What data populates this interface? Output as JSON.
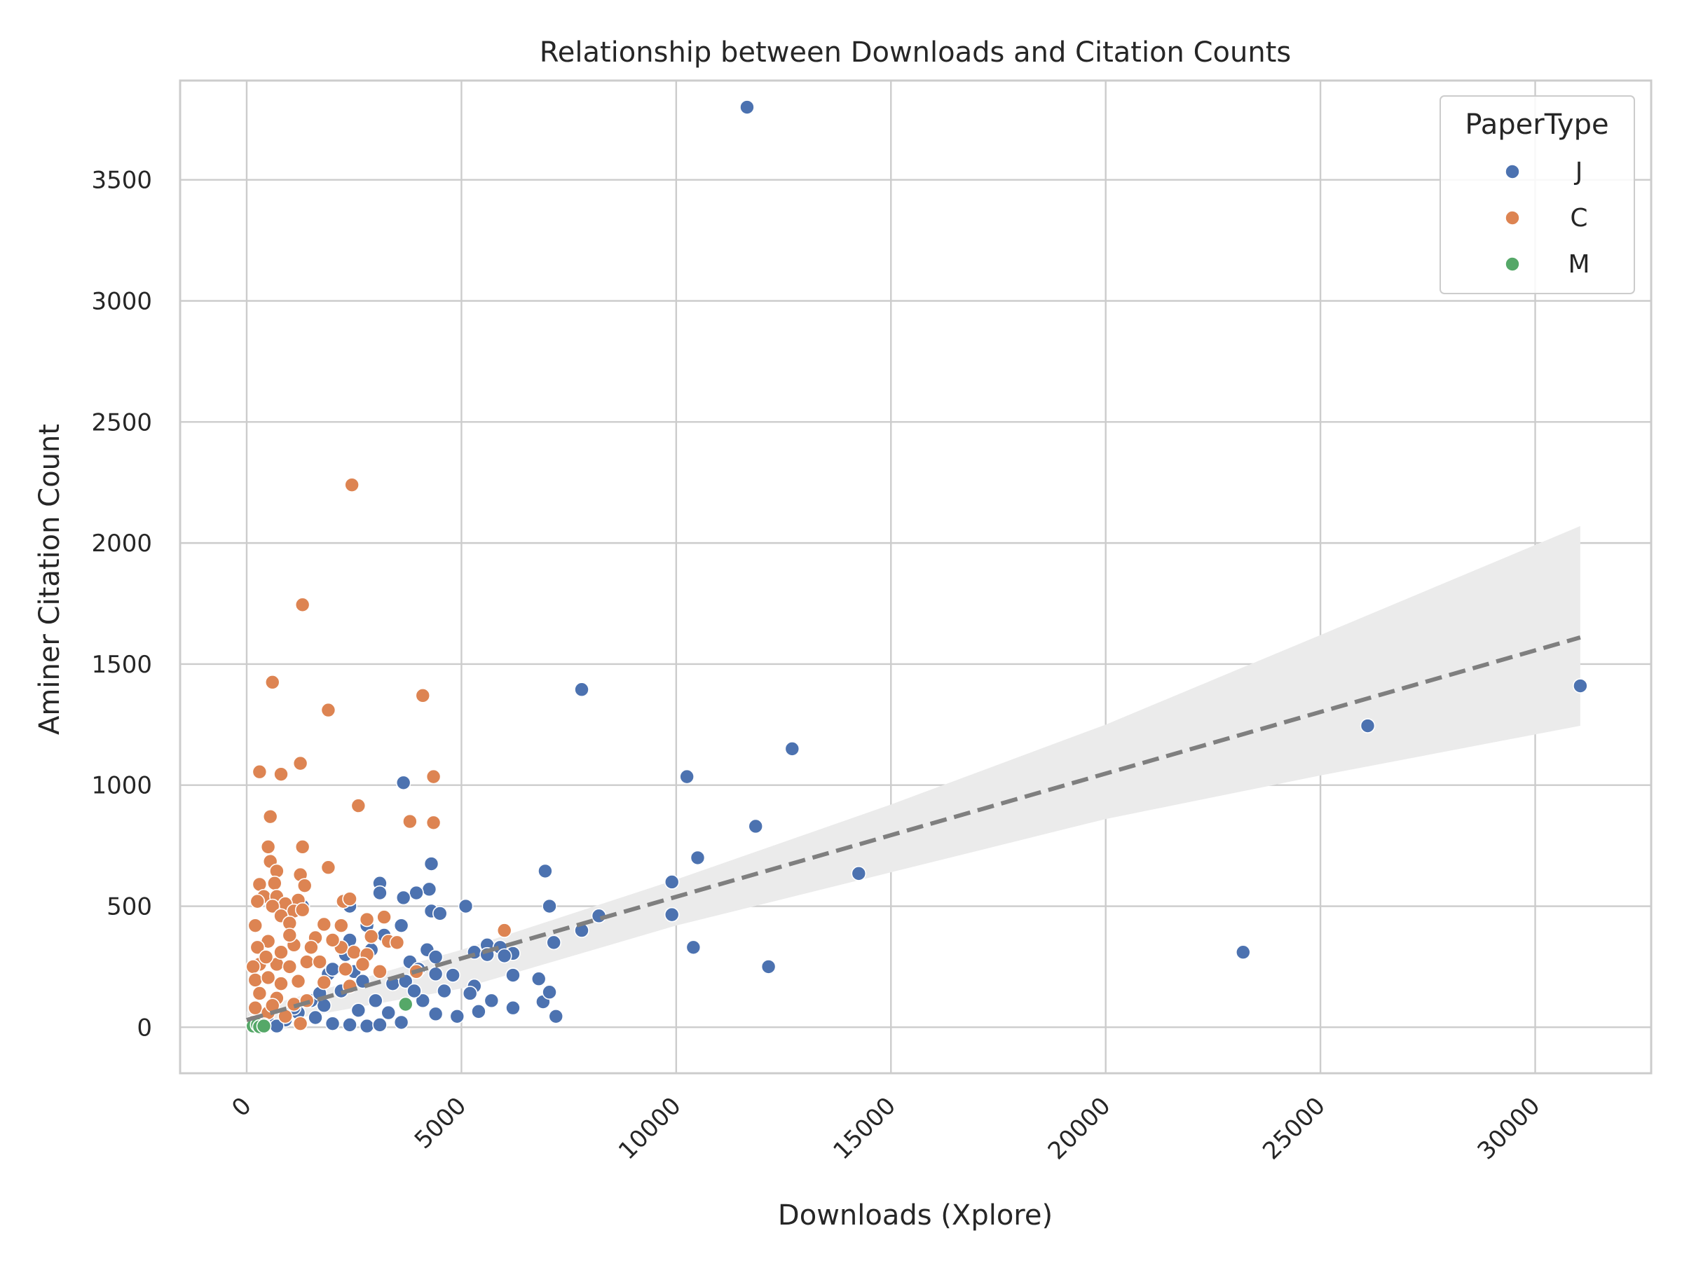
{
  "chart_data": {
    "type": "scatter",
    "title": "Relationship between Downloads and Citation Counts",
    "xlabel": "Downloads (Xplore)",
    "ylabel": "Aminer Citation Count",
    "xlim": [
      -1550,
      32700
    ],
    "ylim": [
      -190,
      3910
    ],
    "xticks": [
      0,
      5000,
      10000,
      15000,
      20000,
      25000,
      30000
    ],
    "yticks": [
      0,
      500,
      1000,
      1500,
      2000,
      2500,
      3000,
      3500
    ],
    "xtick_labels": [
      "0",
      "5000",
      "10000",
      "15000",
      "20000",
      "25000",
      "30000"
    ],
    "ytick_labels": [
      "0",
      "500",
      "1000",
      "1500",
      "2000",
      "2500",
      "3000",
      "3500"
    ],
    "grid": true,
    "legend": {
      "title": "PaperType",
      "placement": "top-right"
    },
    "series": [
      {
        "name": "J",
        "color": "#4c72b0",
        "points": [
          [
            11650,
            3800
          ],
          [
            7800,
            1395
          ],
          [
            31050,
            1410
          ],
          [
            26100,
            1245
          ],
          [
            12700,
            1150
          ],
          [
            10250,
            1035
          ],
          [
            3650,
            1010
          ],
          [
            11850,
            830
          ],
          [
            10500,
            700
          ],
          [
            4300,
            675
          ],
          [
            6950,
            645
          ],
          [
            14250,
            635
          ],
          [
            9900,
            600
          ],
          [
            3100,
            595
          ],
          [
            4250,
            570
          ],
          [
            3100,
            555
          ],
          [
            3950,
            555
          ],
          [
            3650,
            535
          ],
          [
            7050,
            500
          ],
          [
            5100,
            500
          ],
          [
            1300,
            500
          ],
          [
            2400,
            500
          ],
          [
            4300,
            480
          ],
          [
            4500,
            470
          ],
          [
            8200,
            460
          ],
          [
            9900,
            465
          ],
          [
            3600,
            420
          ],
          [
            7800,
            400
          ],
          [
            2800,
            420
          ],
          [
            7150,
            350
          ],
          [
            10400,
            330
          ],
          [
            5600,
            340
          ],
          [
            5900,
            330
          ],
          [
            5300,
            310
          ],
          [
            6200,
            305
          ],
          [
            4200,
            320
          ],
          [
            4400,
            290
          ],
          [
            23200,
            310
          ],
          [
            12150,
            250
          ],
          [
            3800,
            270
          ],
          [
            5600,
            300
          ],
          [
            6000,
            295
          ],
          [
            6200,
            215
          ],
          [
            6800,
            200
          ],
          [
            4800,
            215
          ],
          [
            4400,
            220
          ],
          [
            5300,
            170
          ],
          [
            4600,
            150
          ],
          [
            5200,
            140
          ],
          [
            5700,
            110
          ],
          [
            6900,
            105
          ],
          [
            7050,
            145
          ],
          [
            7200,
            45
          ],
          [
            6200,
            80
          ],
          [
            5400,
            65
          ],
          [
            4900,
            45
          ],
          [
            4400,
            55
          ],
          [
            3000,
            110
          ],
          [
            2500,
            230
          ],
          [
            3400,
            180
          ],
          [
            2200,
            150
          ],
          [
            1800,
            90
          ],
          [
            1200,
            60
          ],
          [
            900,
            30
          ],
          [
            500,
            20
          ],
          [
            300,
            10
          ],
          [
            700,
            5
          ],
          [
            2000,
            15
          ],
          [
            2400,
            10
          ],
          [
            2800,
            5
          ],
          [
            3100,
            10
          ],
          [
            3600,
            20
          ],
          [
            1600,
            40
          ],
          [
            2600,
            70
          ],
          [
            3300,
            60
          ],
          [
            700,
            120
          ],
          [
            1100,
            80
          ],
          [
            1500,
            110
          ],
          [
            1900,
            220
          ],
          [
            2300,
            300
          ],
          [
            3700,
            190
          ],
          [
            4000,
            240
          ],
          [
            4100,
            110
          ],
          [
            3900,
            150
          ],
          [
            1700,
            140
          ],
          [
            2700,
            190
          ],
          [
            2000,
            240
          ],
          [
            3200,
            380
          ],
          [
            2900,
            320
          ],
          [
            2400,
            360
          ]
        ]
      },
      {
        "name": "C",
        "color": "#dd8452",
        "points": [
          [
            2450,
            2240
          ],
          [
            1300,
            1745
          ],
          [
            600,
            1425
          ],
          [
            1900,
            1310
          ],
          [
            4100,
            1370
          ],
          [
            1250,
            1090
          ],
          [
            300,
            1055
          ],
          [
            800,
            1045
          ],
          [
            4350,
            1035
          ],
          [
            2600,
            915
          ],
          [
            550,
            870
          ],
          [
            3800,
            850
          ],
          [
            4350,
            845
          ],
          [
            500,
            745
          ],
          [
            1300,
            745
          ],
          [
            550,
            685
          ],
          [
            1900,
            660
          ],
          [
            700,
            645
          ],
          [
            1250,
            630
          ],
          [
            650,
            595
          ],
          [
            1350,
            585
          ],
          [
            300,
            590
          ],
          [
            400,
            540
          ],
          [
            700,
            540
          ],
          [
            1200,
            525
          ],
          [
            250,
            520
          ],
          [
            900,
            510
          ],
          [
            2250,
            520
          ],
          [
            2400,
            530
          ],
          [
            1100,
            480
          ],
          [
            600,
            500
          ],
          [
            1300,
            485
          ],
          [
            800,
            460
          ],
          [
            200,
            420
          ],
          [
            1000,
            430
          ],
          [
            1800,
            425
          ],
          [
            2200,
            420
          ],
          [
            2800,
            445
          ],
          [
            3200,
            455
          ],
          [
            6000,
            400
          ],
          [
            2900,
            375
          ],
          [
            3300,
            355
          ],
          [
            1600,
            370
          ],
          [
            500,
            355
          ],
          [
            1100,
            340
          ],
          [
            2200,
            330
          ],
          [
            3500,
            350
          ],
          [
            300,
            260
          ],
          [
            150,
            250
          ],
          [
            700,
            260
          ],
          [
            1000,
            250
          ],
          [
            1400,
            270
          ],
          [
            2500,
            310
          ],
          [
            2800,
            300
          ],
          [
            3950,
            230
          ],
          [
            200,
            195
          ],
          [
            500,
            205
          ],
          [
            800,
            180
          ],
          [
            1200,
            190
          ],
          [
            1800,
            185
          ],
          [
            2400,
            170
          ],
          [
            300,
            140
          ],
          [
            700,
            120
          ],
          [
            1100,
            95
          ],
          [
            1400,
            110
          ],
          [
            200,
            80
          ],
          [
            500,
            60
          ],
          [
            900,
            45
          ],
          [
            1250,
            15
          ],
          [
            150,
            20
          ],
          [
            400,
            10
          ],
          [
            600,
            90
          ],
          [
            800,
            310
          ],
          [
            1500,
            330
          ],
          [
            2000,
            360
          ],
          [
            2700,
            260
          ],
          [
            3100,
            230
          ],
          [
            250,
            330
          ],
          [
            450,
            290
          ],
          [
            1000,
            380
          ],
          [
            1700,
            270
          ],
          [
            2300,
            240
          ]
        ]
      },
      {
        "name": "M",
        "color": "#55a868",
        "points": [
          [
            3700,
            95
          ],
          [
            150,
            5
          ],
          [
            250,
            10
          ],
          [
            300,
            2
          ],
          [
            400,
            5
          ]
        ]
      }
    ],
    "regression": {
      "style": "dashed",
      "color": "#7f7f7f",
      "line": [
        [
          0,
          30
        ],
        [
          31050,
          1610
        ]
      ],
      "ci_band": {
        "x": [
          0,
          5000,
          10000,
          15000,
          20000,
          25000,
          31050
        ],
        "lower": [
          0,
          160,
          420,
          640,
          860,
          1040,
          1245
        ],
        "upper": [
          65,
          320,
          610,
          920,
          1250,
          1620,
          2070
        ]
      },
      "band_color": "#ebebeb"
    }
  }
}
